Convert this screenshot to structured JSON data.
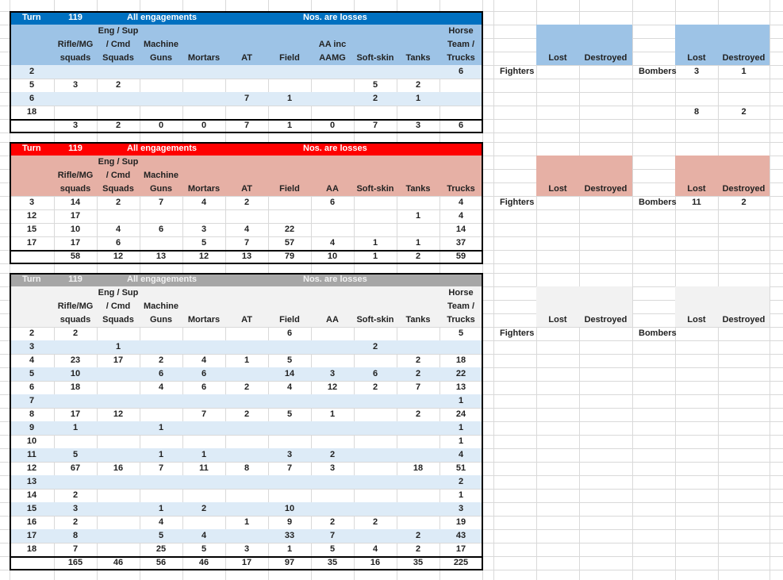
{
  "tables": [
    {
      "header": {
        "turn_label": "Turn",
        "turn": "119",
        "scope": "All engagements",
        "note": "Nos. are losses"
      },
      "columns": [
        [
          "Rifle/MG",
          "squads"
        ],
        [
          "Eng / Sup",
          "/ Cmd",
          "Squads"
        ],
        [
          "Machine",
          "Guns"
        ],
        [
          "Mortars"
        ],
        [
          "AT"
        ],
        [
          "Field"
        ],
        [
          "AA inc",
          "AAMG"
        ],
        [
          "Soft-skin"
        ],
        [
          "Tanks"
        ],
        [
          "Horse",
          "Team /",
          "Trucks"
        ]
      ],
      "rows": [
        {
          "turn": 2,
          "values": [
            null,
            null,
            null,
            null,
            null,
            null,
            null,
            null,
            null,
            6
          ]
        },
        {
          "turn": 5,
          "values": [
            3,
            2,
            null,
            null,
            null,
            null,
            null,
            5,
            2,
            null
          ]
        },
        {
          "turn": 6,
          "values": [
            null,
            null,
            null,
            null,
            7,
            1,
            null,
            2,
            1,
            null
          ]
        },
        {
          "turn": 18,
          "values": [
            null,
            null,
            null,
            null,
            null,
            null,
            null,
            null,
            null,
            null
          ]
        }
      ],
      "totals": [
        3,
        2,
        0,
        0,
        7,
        1,
        0,
        7,
        3,
        6
      ],
      "fighters": {
        "label": "Fighters",
        "columns": [
          "Lost",
          "Destroyed"
        ]
      },
      "bombers": {
        "label": "Bombers",
        "columns": [
          "Lost",
          "Destroyed"
        ],
        "rows": [
          [
            3,
            1
          ],
          null,
          null,
          [
            8,
            2
          ]
        ]
      }
    },
    {
      "header": {
        "turn_label": "Turn",
        "turn": "119",
        "scope": "All engagements",
        "note": "Nos. are losses"
      },
      "columns": [
        [
          "Rifle/MG",
          "squads"
        ],
        [
          "Eng / Sup",
          "/ Cmd",
          "Squads"
        ],
        [
          "Machine",
          "Guns"
        ],
        [
          "Mortars"
        ],
        [
          "AT"
        ],
        [
          "Field"
        ],
        [
          "AA"
        ],
        [
          "Soft-skin"
        ],
        [
          "Tanks"
        ],
        [
          "Trucks"
        ]
      ],
      "rows": [
        {
          "turn": 3,
          "values": [
            14,
            2,
            7,
            4,
            2,
            null,
            6,
            null,
            null,
            4
          ]
        },
        {
          "turn": 12,
          "values": [
            17,
            null,
            null,
            null,
            null,
            null,
            null,
            null,
            1,
            4
          ]
        },
        {
          "turn": 15,
          "values": [
            10,
            4,
            6,
            3,
            4,
            22,
            null,
            null,
            null,
            14
          ]
        },
        {
          "turn": 17,
          "values": [
            17,
            6,
            null,
            5,
            7,
            57,
            4,
            1,
            1,
            37
          ]
        }
      ],
      "totals": [
        58,
        12,
        13,
        12,
        13,
        79,
        10,
        1,
        2,
        59
      ],
      "fighters": {
        "label": "Fighters",
        "columns": [
          "Lost",
          "Destroyed"
        ]
      },
      "bombers": {
        "label": "Bombers",
        "columns": [
          "Lost",
          "Destroyed"
        ],
        "rows": [
          [
            11,
            2
          ],
          null,
          null,
          null
        ]
      }
    },
    {
      "header": {
        "turn_label": "Turn",
        "turn": "119",
        "scope": "All engagements",
        "note": "Nos. are losses"
      },
      "columns": [
        [
          "Rifle/MG",
          "squads"
        ],
        [
          "Eng / Sup",
          "/ Cmd",
          "Squads"
        ],
        [
          "Machine",
          "Guns"
        ],
        [
          "Mortars"
        ],
        [
          "AT"
        ],
        [
          "Field"
        ],
        [
          "AA"
        ],
        [
          "Soft-skin"
        ],
        [
          "Tanks"
        ],
        [
          "Horse",
          "Team /",
          "Trucks"
        ]
      ],
      "rows": [
        {
          "turn": 2,
          "values": [
            2,
            null,
            null,
            null,
            null,
            6,
            null,
            null,
            null,
            5
          ]
        },
        {
          "turn": 3,
          "values": [
            null,
            1,
            null,
            null,
            null,
            null,
            null,
            2,
            null,
            null
          ]
        },
        {
          "turn": 4,
          "values": [
            23,
            17,
            2,
            4,
            1,
            5,
            null,
            null,
            2,
            18
          ]
        },
        {
          "turn": 5,
          "values": [
            10,
            null,
            6,
            6,
            null,
            14,
            3,
            6,
            2,
            22
          ]
        },
        {
          "turn": 6,
          "values": [
            18,
            null,
            4,
            6,
            2,
            4,
            12,
            2,
            7,
            13
          ]
        },
        {
          "turn": 7,
          "values": [
            null,
            null,
            null,
            null,
            null,
            null,
            null,
            null,
            null,
            1
          ]
        },
        {
          "turn": 8,
          "values": [
            17,
            12,
            null,
            7,
            2,
            5,
            1,
            null,
            2,
            24
          ]
        },
        {
          "turn": 9,
          "values": [
            1,
            null,
            1,
            null,
            null,
            null,
            null,
            null,
            null,
            1
          ]
        },
        {
          "turn": 10,
          "values": [
            null,
            null,
            null,
            null,
            null,
            null,
            null,
            null,
            null,
            1
          ]
        },
        {
          "turn": 11,
          "values": [
            5,
            null,
            1,
            1,
            null,
            3,
            2,
            null,
            null,
            4
          ]
        },
        {
          "turn": 12,
          "values": [
            67,
            16,
            7,
            11,
            8,
            7,
            3,
            null,
            18,
            51
          ]
        },
        {
          "turn": 13,
          "values": [
            null,
            null,
            null,
            null,
            null,
            null,
            null,
            null,
            null,
            2
          ]
        },
        {
          "turn": 14,
          "values": [
            2,
            null,
            null,
            null,
            null,
            null,
            null,
            null,
            null,
            1
          ]
        },
        {
          "turn": 15,
          "values": [
            3,
            null,
            1,
            2,
            null,
            10,
            null,
            null,
            null,
            3
          ]
        },
        {
          "turn": 16,
          "values": [
            2,
            null,
            4,
            null,
            1,
            9,
            2,
            2,
            null,
            19
          ]
        },
        {
          "turn": 17,
          "values": [
            8,
            null,
            5,
            4,
            null,
            33,
            7,
            null,
            2,
            43
          ]
        },
        {
          "turn": 18,
          "values": [
            7,
            null,
            25,
            5,
            3,
            1,
            5,
            4,
            2,
            17
          ]
        }
      ],
      "totals": [
        165,
        46,
        56,
        46,
        17,
        97,
        35,
        16,
        35,
        225
      ],
      "fighters": {
        "label": "Fighters",
        "columns": [
          "Lost",
          "Destroyed"
        ]
      },
      "bombers": {
        "label": "Bombers",
        "columns": [
          "Lost",
          "Destroyed"
        ]
      }
    }
  ]
}
